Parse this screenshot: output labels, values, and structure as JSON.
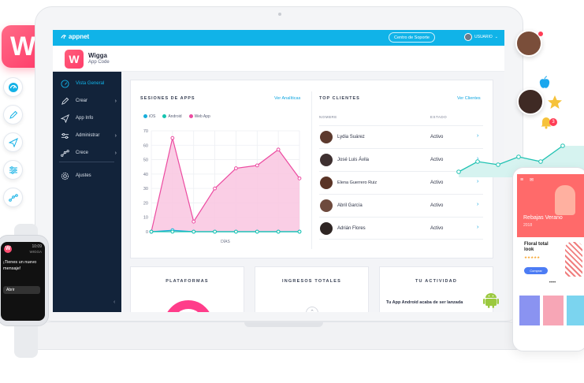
{
  "brand": {
    "name": "appnet"
  },
  "topbar": {
    "support_label": "Centro de Soporte",
    "user_label": "USUARIO"
  },
  "app": {
    "logo_letter": "W",
    "name": "Wigga",
    "subtitle": "App Code"
  },
  "sidebar": {
    "items": [
      {
        "label": "Vista General",
        "icon": "speedometer-icon",
        "active": true,
        "has_chevron": false
      },
      {
        "label": "Crear",
        "icon": "pencil-icon",
        "active": false,
        "has_chevron": true
      },
      {
        "label": "App Info",
        "icon": "send-icon",
        "active": false,
        "has_chevron": false
      },
      {
        "label": "Administrar",
        "icon": "sliders-icon",
        "active": false,
        "has_chevron": true
      },
      {
        "label": "Crece",
        "icon": "graph-icon",
        "active": false,
        "has_chevron": true
      },
      {
        "label": "Ajustes",
        "icon": "gear-icon",
        "active": false,
        "has_chevron": false
      }
    ],
    "collapse_glyph": "‹"
  },
  "sessions": {
    "title": "SESIONES DE APPS",
    "link": "Ver Analíticas",
    "legend": [
      {
        "name": "iOS",
        "color": "#17aedb"
      },
      {
        "name": "Android",
        "color": "#16c4b0"
      },
      {
        "name": "Web App",
        "color": "#ec4aa0"
      }
    ],
    "xlabel": "DÍAS"
  },
  "chart_data": {
    "type": "line",
    "title": "SESIONES DE APPS",
    "xlabel": "DÍAS",
    "ylabel": "",
    "ylim": [
      0,
      70
    ],
    "yticks": [
      0,
      10,
      20,
      30,
      40,
      50,
      60,
      70
    ],
    "x": [
      1,
      2,
      3,
      4,
      5,
      6,
      7,
      8
    ],
    "series": [
      {
        "name": "iOS",
        "values": [
          0,
          1,
          0,
          0,
          0,
          0,
          0,
          0
        ],
        "color": "#17aedb"
      },
      {
        "name": "Android",
        "values": [
          0,
          0,
          0,
          0,
          0,
          0,
          0,
          0
        ],
        "color": "#16c4b0"
      },
      {
        "name": "Web App",
        "values": [
          0,
          65,
          7,
          30,
          44,
          46,
          57,
          37
        ],
        "color": "#ec4aa0"
      }
    ],
    "grid": true,
    "legend": "top-left"
  },
  "clients": {
    "title": "TOP CLIENTES",
    "link": "Ver Clientes",
    "col_name": "NOMBRE",
    "col_status": "ESTADO",
    "rows": [
      {
        "name": "Lydia Suárez",
        "status": "Activo"
      },
      {
        "name": "José Luis Ávila",
        "status": "Activo"
      },
      {
        "name": "Elena Guerrero Ruiz",
        "status": "Activo"
      },
      {
        "name": "Abril García",
        "status": "Activo"
      },
      {
        "name": "Adrián Flores",
        "status": "Activo"
      }
    ]
  },
  "bottom": {
    "platforms_title": "PLATAFORMAS",
    "income_title": "INGRESOS TOTALES",
    "activity_title": "TU ACTIVIDAD",
    "activity_text": "Tu App Android acaba de ser lanzada"
  },
  "watch": {
    "time": "10:09",
    "app": "WIGGA",
    "message": "¡Tienes un nuevo mensaje!",
    "button": "Abrir"
  },
  "phone": {
    "hero_title": "Rebajas Verano",
    "hero_year": "2018",
    "card_title": "Floral total look",
    "stars": "★★★★★",
    "cta": "Comprar",
    "dots": "••••"
  },
  "badges": {
    "notification_count": "3"
  },
  "colors": {
    "accent": "#10b3e8",
    "sidebar": "#12233a",
    "brand_pink": "#ff4f72",
    "chart_fill": "#f9c5e0"
  }
}
